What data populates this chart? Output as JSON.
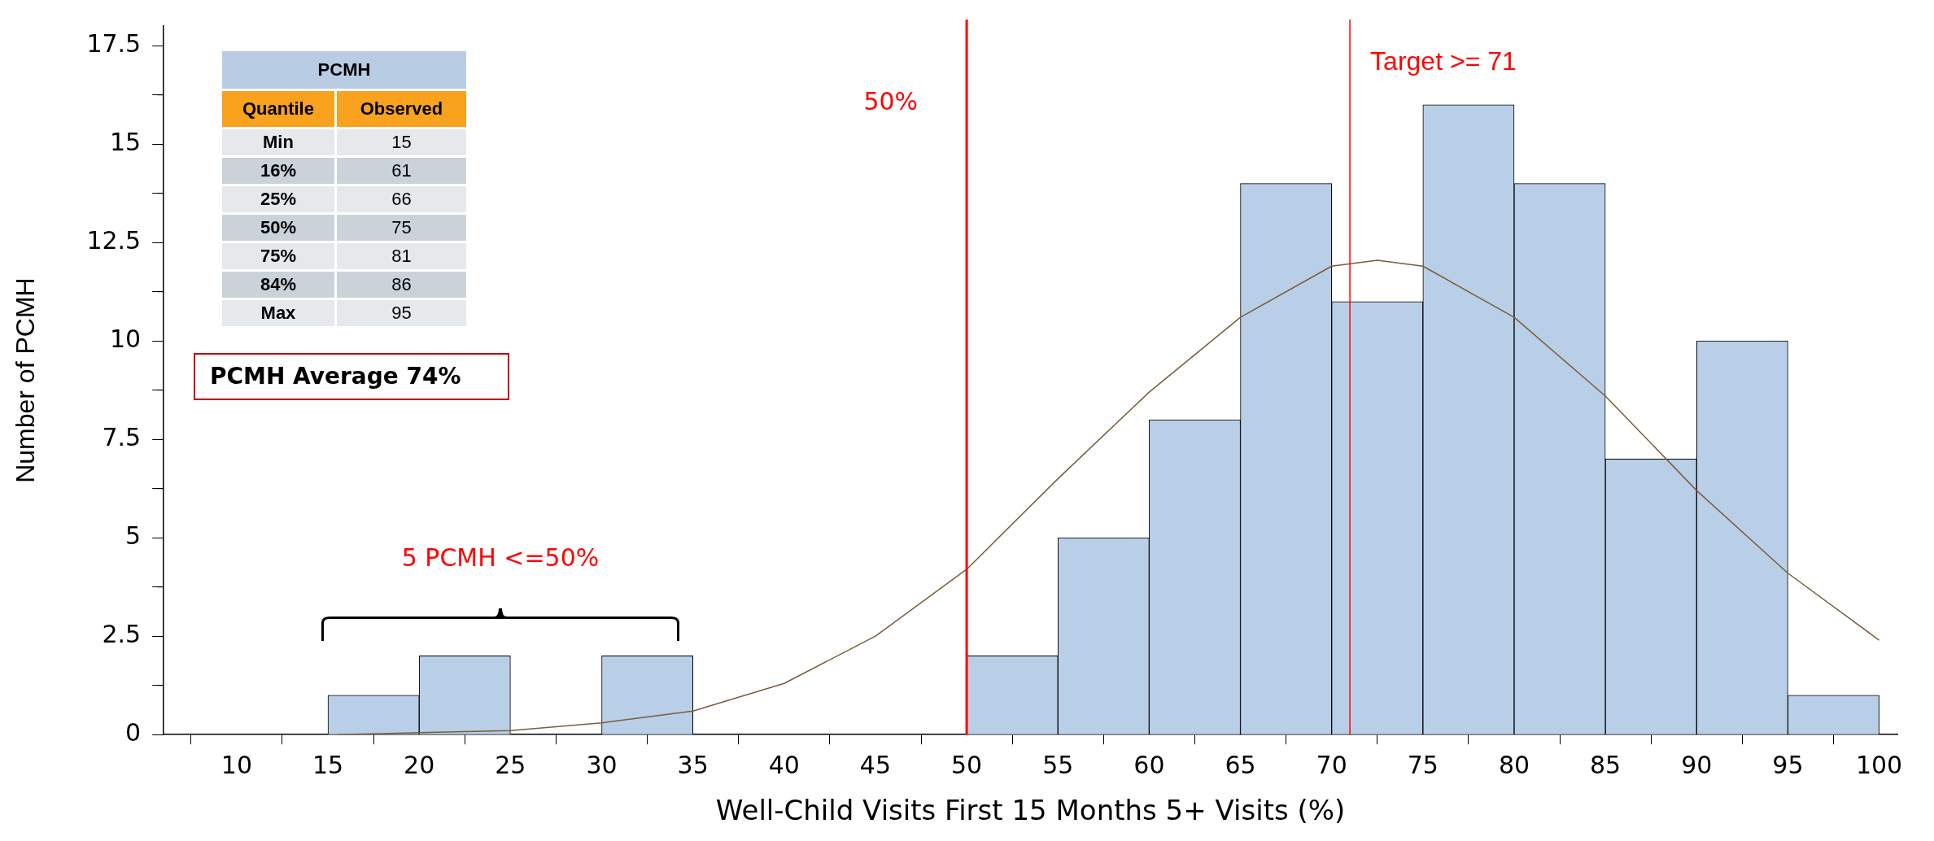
{
  "chart_data": [
    {
      "type": "histogram",
      "xlabel": "Well-Child Visits First 15 Months 5+ Visits (%)",
      "ylabel": "Number of PCMH",
      "bins": [
        15,
        20,
        25,
        30,
        35,
        40,
        45,
        50,
        55,
        60,
        65,
        70,
        75,
        80,
        85,
        90,
        95,
        100
      ],
      "values": [
        1,
        2,
        0,
        2,
        0,
        0,
        0,
        2,
        5,
        8,
        14,
        11,
        16,
        14,
        7,
        10,
        1
      ],
      "color": "#b9cfe7",
      "series": [
        {
          "type": "line",
          "color": "#7a5c3a",
          "x": [
            15.5,
            20,
            25,
            30,
            35,
            40,
            45,
            50,
            55,
            60,
            65,
            70,
            72.5,
            75,
            80,
            85,
            90,
            95,
            100
          ],
          "values": [
            0,
            0.05,
            0.1,
            0.3,
            0.6,
            1.3,
            2.5,
            4.2,
            6.5,
            8.7,
            10.6,
            11.9,
            12.05,
            11.9,
            10.6,
            8.6,
            6.2,
            4.1,
            2.4
          ]
        }
      ],
      "xlim": [
        6,
        101
      ],
      "xticks": [
        10,
        15,
        20,
        25,
        30,
        35,
        40,
        45,
        50,
        55,
        60,
        65,
        70,
        75,
        80,
        85,
        90,
        95,
        100
      ],
      "ylim": [
        0,
        18
      ],
      "yticks": [
        0,
        {
          "value": 1.25,
          "label": null
        },
        2.5,
        {
          "value": 3.75,
          "label": null
        },
        5.0,
        {
          "value": 6.25,
          "label": null
        },
        7.5,
        {
          "value": 8.75,
          "label": null
        },
        10.0,
        {
          "value": 11.25,
          "label": null
        },
        12.5,
        {
          "value": 13.75,
          "label": null
        },
        15.0,
        {
          "value": 16.25,
          "label": null
        },
        17.5
      ],
      "ref_lines": [
        {
          "axis": "x",
          "value": 50,
          "label": "50%",
          "color": "#ff0000"
        },
        {
          "axis": "x",
          "value": 71,
          "label": "Target >= 71",
          "color": "#ff0000"
        }
      ],
      "annotations": [
        "5 PCMH <=50%",
        "PCMH Average  74%"
      ],
      "grid": false,
      "legend": false
    },
    {
      "type": "other",
      "title": "PCMH",
      "xlabel": "Quantile",
      "ylabel": "Observed",
      "categories": [
        "Min",
        "16%",
        "25%",
        "50%",
        "75%",
        "84%",
        "Max"
      ],
      "values": [
        15,
        61,
        66,
        75,
        81,
        86,
        95
      ],
      "data_labels": true
    }
  ]
}
